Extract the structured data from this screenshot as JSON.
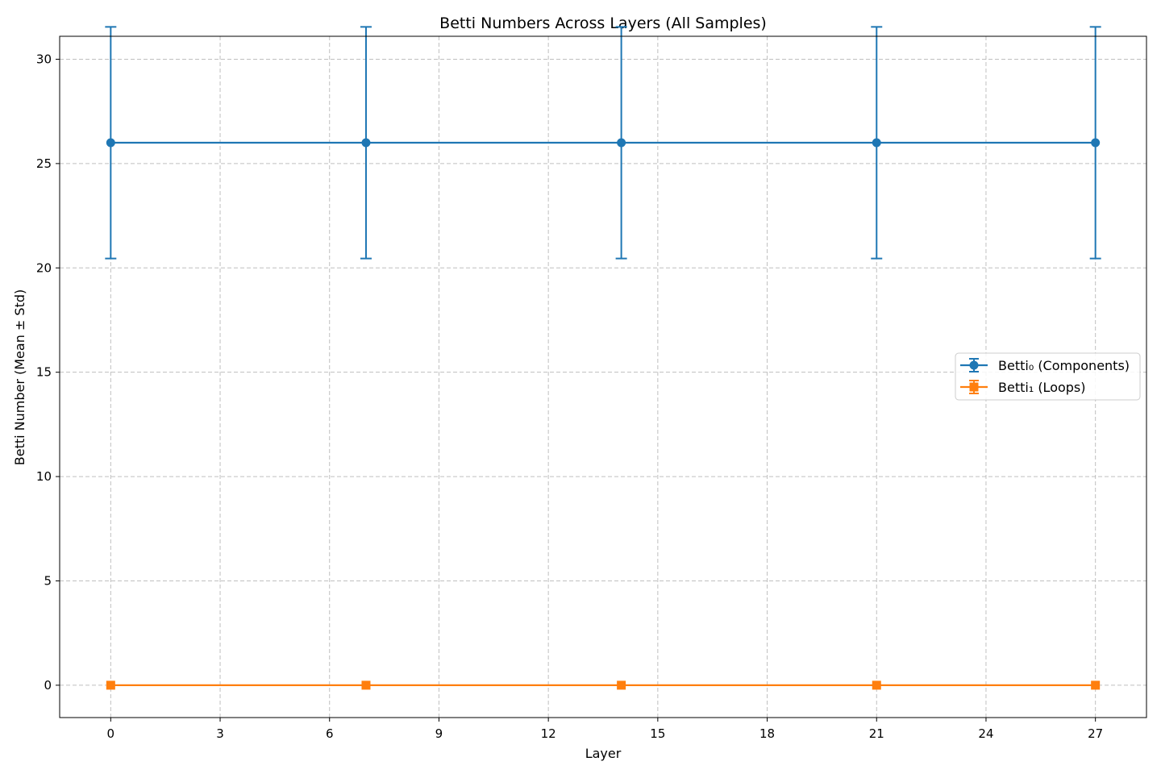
{
  "chart_data": {
    "type": "line",
    "title": "Betti Numbers Across Layers (All Samples)",
    "xlabel": "Layer",
    "ylabel": "Betti Number (Mean ± Std)",
    "x": [
      0,
      7,
      14,
      21,
      27
    ],
    "xlim": [
      -1.4,
      28.4
    ],
    "ylim": [
      -1.55,
      31.1
    ],
    "xticks": [
      0,
      3,
      6,
      9,
      12,
      15,
      18,
      21,
      24,
      27
    ],
    "yticks": [
      0,
      5,
      10,
      15,
      20,
      25,
      30
    ],
    "grid": true,
    "legend_position": "center-right",
    "series": [
      {
        "name": "Betti₀ (Components)",
        "values": [
          26,
          26,
          26,
          26,
          26
        ],
        "error": [
          5.55,
          5.55,
          5.55,
          5.55,
          5.55
        ],
        "color": "#1f77b4",
        "marker": "circle"
      },
      {
        "name": "Betti₁ (Loops)",
        "values": [
          0,
          0,
          0,
          0,
          0
        ],
        "error": [
          0,
          0,
          0,
          0,
          0
        ],
        "color": "#ff7f0e",
        "marker": "square"
      }
    ]
  }
}
